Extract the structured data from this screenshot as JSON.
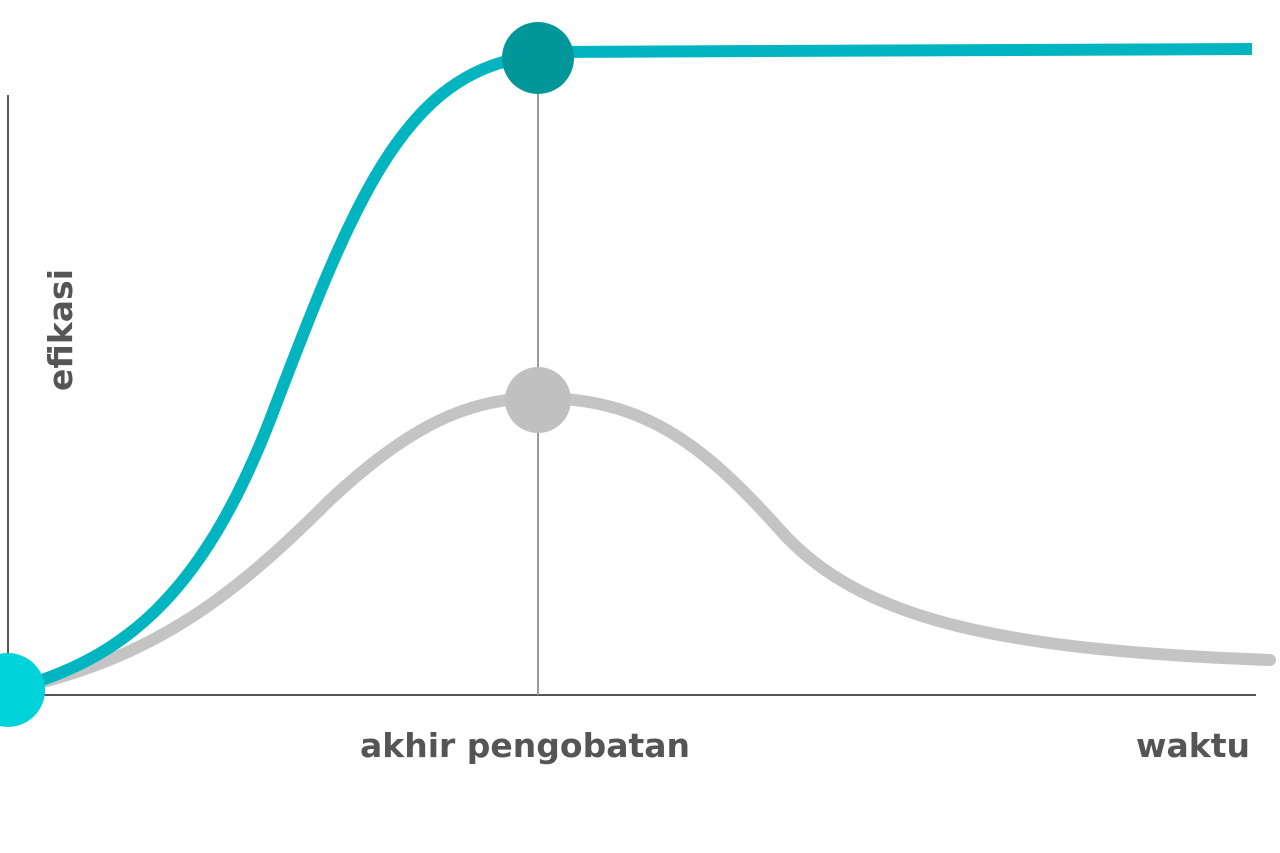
{
  "labels": {
    "y_axis": "efikasi",
    "x_marker": "akhir pengobatan",
    "x_axis": "waktu"
  },
  "colors": {
    "teal_line": "#00b5c0",
    "teal_end_point": "#00979b",
    "start_point": "#00d2d9",
    "grey_line": "#c4c4c4",
    "grey_point": "#c0c0c0",
    "axis": "#555555",
    "text": "#555555"
  }
}
